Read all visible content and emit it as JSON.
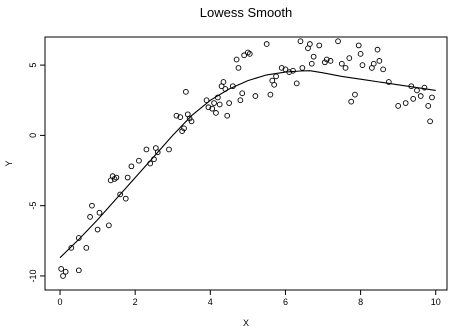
{
  "chart_data": {
    "type": "scatter",
    "title": "Lowess Smooth",
    "xlabel": "X",
    "ylabel": "Y",
    "xlim": [
      -0.4,
      10.3
    ],
    "ylim": [
      -11.0,
      7.0
    ],
    "xticks": [
      0,
      2,
      4,
      6,
      8,
      10
    ],
    "yticks": [
      -10,
      -5,
      0,
      5
    ],
    "grid": false,
    "series": [
      {
        "type": "scatter",
        "marker": "open-circle",
        "x": [
          0.03,
          0.08,
          0.15,
          0.3,
          0.5,
          0.5,
          0.7,
          0.8,
          0.85,
          1.0,
          1.05,
          1.3,
          1.35,
          1.4,
          1.45,
          1.5,
          1.6,
          1.75,
          1.8,
          1.9,
          2.1,
          2.3,
          2.4,
          2.5,
          2.55,
          2.6,
          2.9,
          3.1,
          3.2,
          3.25,
          3.3,
          3.35,
          3.4,
          3.45,
          3.5,
          3.9,
          3.95,
          4.05,
          4.1,
          4.15,
          4.2,
          4.25,
          4.3,
          4.35,
          4.4,
          4.45,
          4.5,
          4.6,
          4.7,
          4.75,
          4.8,
          4.85,
          4.9,
          5.0,
          5.05,
          5.2,
          5.5,
          5.6,
          5.65,
          5.7,
          5.75,
          5.9,
          6.0,
          6.1,
          6.2,
          6.3,
          6.4,
          6.45,
          6.6,
          6.65,
          6.7,
          6.75,
          6.9,
          7.05,
          7.1,
          7.2,
          7.4,
          7.5,
          7.6,
          7.7,
          7.75,
          7.85,
          7.95,
          8.0,
          8.05,
          8.3,
          8.35,
          8.45,
          8.5,
          8.6,
          8.75,
          9.0,
          9.2,
          9.35,
          9.4,
          9.5,
          9.6,
          9.7,
          9.8,
          9.85,
          9.9
        ],
        "y": [
          -9.5,
          -10.0,
          -9.7,
          -8.0,
          -7.3,
          -9.6,
          -8.0,
          -5.8,
          -5.0,
          -6.7,
          -5.5,
          -6.4,
          -3.2,
          -2.9,
          -3.1,
          -3.0,
          -4.2,
          -4.5,
          -3.0,
          -2.2,
          -1.8,
          -1.0,
          -2.0,
          -1.7,
          -0.9,
          -1.2,
          -1.0,
          1.4,
          1.3,
          0.3,
          0.5,
          3.1,
          1.5,
          1.2,
          1.0,
          2.5,
          2.0,
          1.9,
          2.3,
          1.6,
          2.7,
          2.2,
          3.5,
          3.8,
          3.3,
          1.4,
          2.3,
          3.5,
          5.4,
          4.8,
          2.5,
          3.0,
          5.7,
          5.9,
          5.8,
          2.8,
          6.5,
          2.9,
          3.9,
          3.6,
          4.2,
          4.8,
          4.7,
          4.5,
          4.6,
          3.7,
          6.7,
          4.8,
          6.2,
          6.5,
          5.1,
          5.6,
          6.4,
          5.2,
          5.4,
          5.3,
          6.7,
          5.1,
          4.8,
          5.5,
          2.4,
          2.9,
          6.4,
          5.8,
          5.0,
          4.8,
          5.1,
          6.1,
          5.3,
          4.7,
          3.8,
          2.1,
          2.3,
          3.5,
          2.6,
          3.2,
          2.8,
          3.4,
          2.1,
          1.0,
          2.7
        ]
      },
      {
        "type": "line",
        "x": [
          0.0,
          0.5,
          1.0,
          1.5,
          2.0,
          2.5,
          3.0,
          3.5,
          4.0,
          4.5,
          5.0,
          5.5,
          6.0,
          6.4,
          6.65,
          7.0,
          7.5,
          8.0,
          8.5,
          9.0,
          9.5,
          10.0
        ],
        "y": [
          -8.7,
          -7.4,
          -6.0,
          -4.5,
          -3.0,
          -1.5,
          0.0,
          1.4,
          2.5,
          3.3,
          3.9,
          4.3,
          4.5,
          4.58,
          4.6,
          4.45,
          4.2,
          4.0,
          3.8,
          3.6,
          3.4,
          3.2
        ]
      }
    ]
  }
}
